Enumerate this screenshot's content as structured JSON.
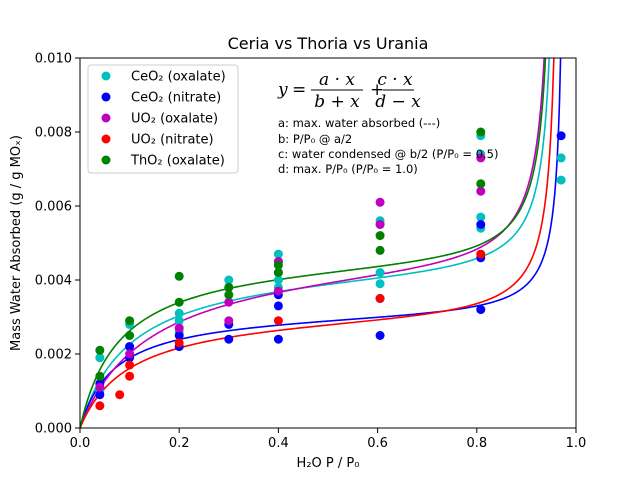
{
  "chart_data": {
    "type": "scatter",
    "title": "Ceria vs Thoria vs Urania",
    "xlabel": "H₂O P / P₀",
    "ylabel": "Mass Water Absorbed (g / g MOₓ)",
    "xlim": [
      0.0,
      1.0
    ],
    "ylim": [
      0.0,
      0.01
    ],
    "xticks": [
      "0.0",
      "0.2",
      "0.4",
      "0.6",
      "0.8",
      "1.0"
    ],
    "yticks": [
      "0.000",
      "0.002",
      "0.004",
      "0.006",
      "0.008",
      "0.010"
    ],
    "legend_position": "top-left",
    "formula": "y = a·x/(b+x) + c·x/(d−x)",
    "annotations": [
      "a: max. water absorbed (---)",
      "b: P/P₀ @ a/2",
      "c: water condensed @ b/2 (P/P₀ = 0.5)",
      "d: max. P/P₀ (P/P₀ = 1.0)"
    ],
    "series": [
      {
        "name": "CeO₂ (oxalate)",
        "color": "#00bfbf",
        "points": [
          [
            0.04,
            0.0019
          ],
          [
            0.04,
            0.001
          ],
          [
            0.1,
            0.0028
          ],
          [
            0.1,
            0.0022
          ],
          [
            0.2,
            0.0029
          ],
          [
            0.2,
            0.0031
          ],
          [
            0.2,
            0.0026
          ],
          [
            0.3,
            0.004
          ],
          [
            0.3,
            0.0038
          ],
          [
            0.4,
            0.0047
          ],
          [
            0.4,
            0.0045
          ],
          [
            0.4,
            0.0042
          ],
          [
            0.4,
            0.004
          ],
          [
            0.4,
            0.0038
          ],
          [
            0.605,
            0.0056
          ],
          [
            0.605,
            0.0055
          ],
          [
            0.605,
            0.0042
          ],
          [
            0.605,
            0.0039
          ],
          [
            0.808,
            0.0079
          ],
          [
            0.808,
            0.0074
          ],
          [
            0.808,
            0.0057
          ],
          [
            0.808,
            0.0054
          ],
          [
            0.97,
            0.0073
          ],
          [
            0.97,
            0.0067
          ]
        ],
        "fit": {
          "a": 0.0045,
          "b": 0.1,
          "c": 0.00012,
          "d": 0.965
        }
      },
      {
        "name": "CeO₂ (nitrate)",
        "color": "#0000ff",
        "points": [
          [
            0.04,
            0.0012
          ],
          [
            0.04,
            0.0009
          ],
          [
            0.1,
            0.0022
          ],
          [
            0.1,
            0.0019
          ],
          [
            0.2,
            0.0025
          ],
          [
            0.2,
            0.0022
          ],
          [
            0.3,
            0.0028
          ],
          [
            0.3,
            0.0024
          ],
          [
            0.4,
            0.0036
          ],
          [
            0.4,
            0.0033
          ],
          [
            0.4,
            0.0024
          ],
          [
            0.605,
            0.0035
          ],
          [
            0.605,
            0.0025
          ],
          [
            0.808,
            0.0055
          ],
          [
            0.808,
            0.0046
          ],
          [
            0.808,
            0.0032
          ],
          [
            0.97,
            0.0079
          ]
        ],
        "fit": {
          "a": 0.0032,
          "b": 0.07,
          "c": 8e-05,
          "d": 0.98
        }
      },
      {
        "name": "UO₂ (oxalate)",
        "color": "#bf00bf",
        "points": [
          [
            0.04,
            0.0011
          ],
          [
            0.1,
            0.002
          ],
          [
            0.2,
            0.0027
          ],
          [
            0.3,
            0.0029
          ],
          [
            0.3,
            0.0034
          ],
          [
            0.4,
            0.0037
          ],
          [
            0.4,
            0.0045
          ],
          [
            0.605,
            0.0061
          ],
          [
            0.605,
            0.0055
          ],
          [
            0.808,
            0.0073
          ],
          [
            0.808,
            0.0064
          ]
        ],
        "fit": {
          "a": 0.0048,
          "b": 0.14,
          "c": 0.00015,
          "d": 0.96
        }
      },
      {
        "name": "UO₂ (nitrate)",
        "color": "#ff0000",
        "points": [
          [
            0.04,
            0.0006
          ],
          [
            0.08,
            0.0009
          ],
          [
            0.1,
            0.0017
          ],
          [
            0.1,
            0.0014
          ],
          [
            0.2,
            0.0023
          ],
          [
            0.4,
            0.0029
          ],
          [
            0.605,
            0.0035
          ],
          [
            0.808,
            0.0047
          ]
        ],
        "fit": {
          "a": 0.0032,
          "b": 0.1,
          "c": 0.00011,
          "d": 0.97
        }
      },
      {
        "name": "ThO₂ (oxalate)",
        "color": "#008000",
        "points": [
          [
            0.04,
            0.0021
          ],
          [
            0.04,
            0.0014
          ],
          [
            0.1,
            0.0029
          ],
          [
            0.1,
            0.0025
          ],
          [
            0.2,
            0.0041
          ],
          [
            0.2,
            0.0034
          ],
          [
            0.3,
            0.0038
          ],
          [
            0.3,
            0.0036
          ],
          [
            0.4,
            0.0044
          ],
          [
            0.4,
            0.0042
          ],
          [
            0.605,
            0.0052
          ],
          [
            0.605,
            0.0048
          ],
          [
            0.808,
            0.008
          ],
          [
            0.808,
            0.0066
          ]
        ],
        "fit": {
          "a": 0.0047,
          "b": 0.08,
          "c": 0.00013,
          "d": 0.96
        }
      }
    ]
  }
}
